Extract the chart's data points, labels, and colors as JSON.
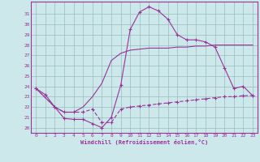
{
  "xlabel": "Windchill (Refroidissement éolien,°C)",
  "bg_color": "#cce8ea",
  "grid_color": "#99bbbb",
  "line_color": "#993399",
  "xlim": [
    -0.5,
    23.5
  ],
  "ylim": [
    19.5,
    32.2
  ],
  "xticks": [
    0,
    1,
    2,
    3,
    4,
    5,
    6,
    7,
    8,
    9,
    10,
    11,
    12,
    13,
    14,
    15,
    16,
    17,
    18,
    19,
    20,
    21,
    22,
    23
  ],
  "yticks": [
    20,
    21,
    22,
    23,
    24,
    25,
    26,
    27,
    28,
    29,
    30,
    31
  ],
  "line1_x": [
    0,
    1,
    2,
    3,
    4,
    5,
    6,
    7,
    8,
    9,
    10,
    11,
    12,
    13,
    14,
    15,
    16,
    17,
    18,
    19,
    20,
    21,
    22,
    23
  ],
  "line1_y": [
    23.8,
    23.2,
    22.0,
    20.9,
    20.8,
    20.8,
    20.4,
    20.0,
    21.0,
    24.1,
    29.5,
    31.2,
    31.7,
    31.3,
    30.5,
    29.0,
    28.5,
    28.5,
    28.3,
    27.8,
    25.8,
    23.8,
    24.0,
    23.1
  ],
  "line2_x": [
    0,
    2,
    3,
    4,
    5,
    6,
    7,
    8,
    9,
    10,
    11,
    12,
    13,
    14,
    15,
    16,
    17,
    18,
    19,
    20,
    21,
    22,
    23
  ],
  "line2_y": [
    23.8,
    22.0,
    21.5,
    21.5,
    21.5,
    21.8,
    20.5,
    20.5,
    21.8,
    22.0,
    22.1,
    22.2,
    22.3,
    22.4,
    22.5,
    22.6,
    22.7,
    22.8,
    22.9,
    23.0,
    23.0,
    23.1,
    23.1
  ],
  "line3_x": [
    0,
    2,
    3,
    4,
    5,
    6,
    7,
    8,
    9,
    10,
    11,
    12,
    13,
    14,
    15,
    16,
    17,
    18,
    19,
    20,
    21,
    22,
    23
  ],
  "line3_y": [
    23.8,
    22.0,
    21.5,
    21.5,
    22.0,
    23.0,
    24.3,
    26.5,
    27.2,
    27.5,
    27.6,
    27.7,
    27.7,
    27.7,
    27.8,
    27.8,
    27.9,
    27.9,
    28.0,
    28.0,
    28.0,
    28.0,
    28.0
  ]
}
